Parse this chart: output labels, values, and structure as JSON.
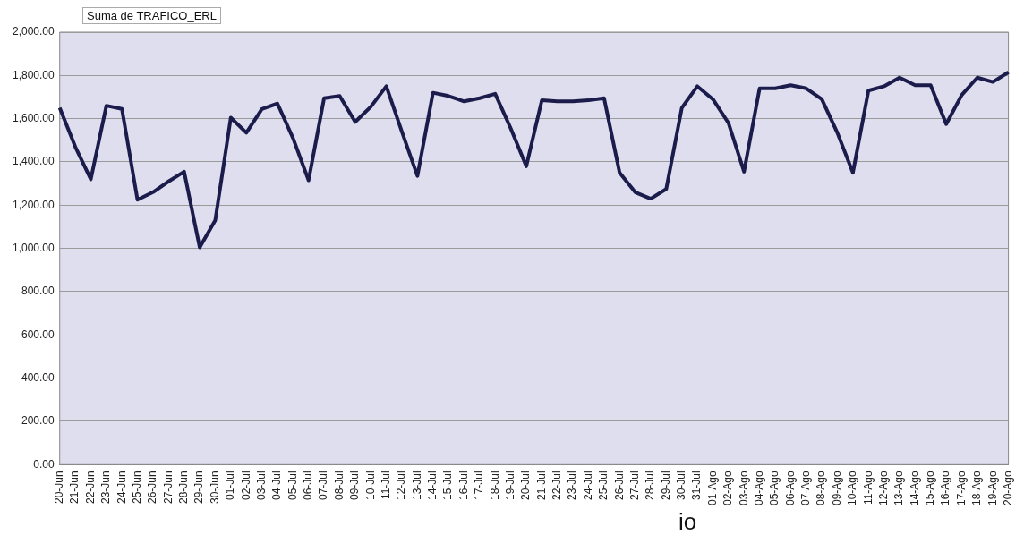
{
  "chart_data": {
    "type": "line",
    "title": "Suma de TRAFICO_ERL",
    "categories": [
      "20-Jun",
      "21-Jun",
      "22-Jun",
      "23-Jun",
      "24-Jun",
      "25-Jun",
      "26-Jun",
      "27-Jun",
      "28-Jun",
      "29-Jun",
      "30-Jun",
      "01-Jul",
      "02-Jul",
      "03-Jul",
      "04-Jul",
      "05-Jul",
      "06-Jul",
      "07-Jul",
      "08-Jul",
      "09-Jul",
      "10-Jul",
      "11-Jul",
      "12-Jul",
      "13-Jul",
      "14-Jul",
      "15-Jul",
      "16-Jul",
      "17-Jul",
      "18-Jul",
      "19-Jul",
      "20-Jul",
      "21-Jul",
      "22-Jul",
      "23-Jul",
      "24-Jul",
      "25-Jul",
      "26-Jul",
      "27-Jul",
      "28-Jul",
      "29-Jul",
      "30-Jul",
      "31-Jul",
      "01-Ago",
      "02-Ago",
      "03-Ago",
      "04-Ago",
      "05-Ago",
      "06-Ago",
      "07-Ago",
      "08-Ago",
      "09-Ago",
      "10-Ago",
      "11-Ago",
      "12-Ago",
      "13-Ago",
      "14-Ago",
      "15-Ago",
      "16-Ago",
      "17-Ago",
      "18-Ago",
      "19-Ago",
      "20-Ago"
    ],
    "series": [
      {
        "color": "#1c1c4c",
        "values": [
          1650,
          1470,
          1320,
          1660,
          1645,
          1225,
          1260,
          1310,
          1355,
          1005,
          1130,
          1605,
          1535,
          1645,
          1670,
          1510,
          1315,
          1695,
          1705,
          1585,
          1655,
          1750,
          1540,
          1335,
          1720,
          1705,
          1680,
          1695,
          1715,
          1555,
          1380,
          1685,
          1680,
          1680,
          1685,
          1695,
          1350,
          1260,
          1230,
          1275,
          1650,
          1750,
          1690,
          1580,
          1355,
          1740,
          1740,
          1755,
          1740,
          1690,
          1535,
          1350,
          1730,
          1750,
          1790,
          1755,
          1755,
          1575,
          1710,
          1790,
          1770,
          1815
        ]
      }
    ],
    "ylim": [
      0,
      2000
    ],
    "yticks": [
      {
        "value": 0,
        "label": "0.00"
      },
      {
        "value": 200,
        "label": "200.00"
      },
      {
        "value": 400,
        "label": "400.00"
      },
      {
        "value": 600,
        "label": "600.00"
      },
      {
        "value": 800,
        "label": "800.00"
      },
      {
        "value": 1000,
        "label": "1,000.00"
      },
      {
        "value": 1200,
        "label": "1,200.00"
      },
      {
        "value": 1400,
        "label": "1,400.00"
      },
      {
        "value": 1600,
        "label": "1,600.00"
      },
      {
        "value": 1800,
        "label": "1,800.00"
      },
      {
        "value": 2000,
        "label": "2,000.00"
      }
    ],
    "grid": "y",
    "legend": false,
    "marker": "none",
    "line_style": "solid",
    "annotations": [
      "io"
    ]
  }
}
